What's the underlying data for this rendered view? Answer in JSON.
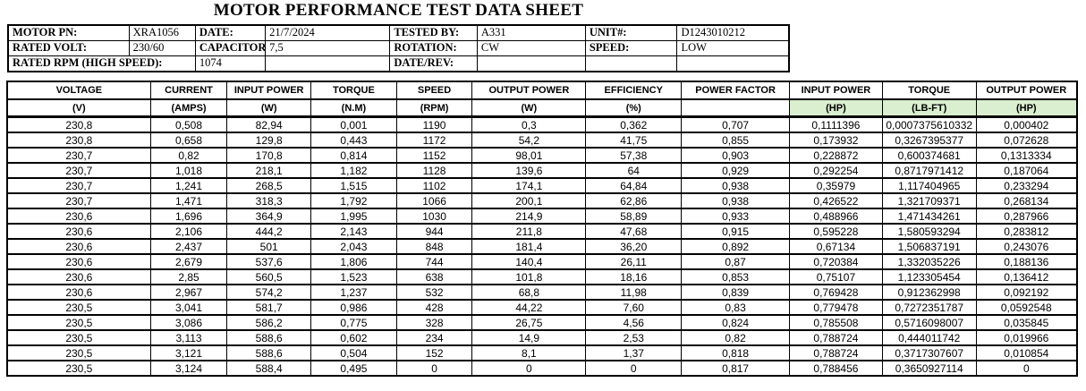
{
  "title": "MOTOR PERFORMANCE TEST DATA SHEET",
  "colors": {
    "unit_highlight": "#d9efcf",
    "border": "#000000"
  },
  "info_table": {
    "rows": [
      [
        {
          "text": "MOTOR PN:",
          "bold": true
        },
        {
          "text": "XRA1056"
        },
        {
          "text": "DATE:",
          "bold": true
        },
        {
          "text": "21/7/2024"
        },
        {
          "text": "TESTED BY:",
          "bold": true
        },
        {
          "text": "A331"
        },
        {
          "text": "UNIT#:",
          "bold": true
        },
        {
          "text": "D1243010212"
        }
      ],
      [
        {
          "text": "RATED VOLT:",
          "bold": true
        },
        {
          "text": "230/60"
        },
        {
          "text": "CAPACITOR:",
          "bold": true
        },
        {
          "text": "7,5"
        },
        {
          "text": "ROTATION:",
          "bold": true
        },
        {
          "text": "CW"
        },
        {
          "text": "SPEED:",
          "bold": true
        },
        {
          "text": "LOW"
        }
      ],
      [
        {
          "text": "RATED RPM (HIGH SPEED):",
          "bold": true,
          "span": 2
        },
        {
          "text": "1074"
        },
        {
          "text": ""
        },
        {
          "text": "DATE/REV:",
          "bold": true
        },
        {
          "text": ""
        },
        {
          "text": ""
        },
        {
          "text": ""
        }
      ]
    ]
  },
  "data_table": {
    "columns": [
      {
        "name": "VOLTAGE",
        "unit": "(V)",
        "highlight": false
      },
      {
        "name": "CURRENT",
        "unit": "(AMPS)",
        "highlight": false
      },
      {
        "name": "INPUT POWER",
        "unit": "(W)",
        "highlight": false
      },
      {
        "name": "TORQUE",
        "unit": "(N.M)",
        "highlight": false
      },
      {
        "name": "SPEED",
        "unit": "(RPM)",
        "highlight": false
      },
      {
        "name": "OUTPUT POWER",
        "unit": "(W)",
        "highlight": false
      },
      {
        "name": "EFFICIENCY",
        "unit": "(%)",
        "highlight": false
      },
      {
        "name": "POWER FACTOR",
        "unit": "",
        "highlight": false
      },
      {
        "name": "INPUT POWER",
        "unit": "(HP)",
        "highlight": true
      },
      {
        "name": "TORQUE",
        "unit": "(LB-FT)",
        "highlight": true
      },
      {
        "name": "OUTPUT POWER",
        "unit": "(HP)",
        "highlight": true
      }
    ],
    "rows": [
      [
        "230,8",
        "0,508",
        "82,94",
        "0,001",
        "1190",
        "0,3",
        "0,362",
        "0,707",
        "0,1111396",
        "0,0007375610332",
        "0,000402"
      ],
      [
        "230,8",
        "0,658",
        "129,8",
        "0,443",
        "1172",
        "54,2",
        "41,75",
        "0,855",
        "0,173932",
        "0,3267395377",
        "0,072628"
      ],
      [
        "230,7",
        "0,82",
        "170,8",
        "0,814",
        "1152",
        "98,01",
        "57,38",
        "0,903",
        "0,228872",
        "0,600374681",
        "0,1313334"
      ],
      [
        "230,7",
        "1,018",
        "218,1",
        "1,182",
        "1128",
        "139,6",
        "64",
        "0,929",
        "0,292254",
        "0,8717971412",
        "0,187064"
      ],
      [
        "230,7",
        "1,241",
        "268,5",
        "1,515",
        "1102",
        "174,1",
        "64,84",
        "0,938",
        "0,35979",
        "1,117404965",
        "0,233294"
      ],
      [
        "230,7",
        "1,471",
        "318,3",
        "1,792",
        "1066",
        "200,1",
        "62,86",
        "0,938",
        "0,426522",
        "1,321709371",
        "0,268134"
      ],
      [
        "230,6",
        "1,696",
        "364,9",
        "1,995",
        "1030",
        "214,9",
        "58,89",
        "0,933",
        "0,488966",
        "1,471434261",
        "0,287966"
      ],
      [
        "230,6",
        "2,106",
        "444,2",
        "2,143",
        "944",
        "211,8",
        "47,68",
        "0,915",
        "0,595228",
        "1,580593294",
        "0,283812"
      ],
      [
        "230,6",
        "2,437",
        "501",
        "2,043",
        "848",
        "181,4",
        "36,20",
        "0,892",
        "0,67134",
        "1,506837191",
        "0,243076"
      ],
      [
        "230,6",
        "2,679",
        "537,6",
        "1,806",
        "744",
        "140,4",
        "26,11",
        "0,87",
        "0,720384",
        "1,332035226",
        "0,188136"
      ],
      [
        "230,6",
        "2,85",
        "560,5",
        "1,523",
        "638",
        "101,8",
        "18,16",
        "0,853",
        "0,75107",
        "1,123305454",
        "0,136412"
      ],
      [
        "230,6",
        "2,967",
        "574,2",
        "1,237",
        "532",
        "68,8",
        "11,98",
        "0,839",
        "0,769428",
        "0,912362998",
        "0,092192"
      ],
      [
        "230,5",
        "3,041",
        "581,7",
        "0,986",
        "428",
        "44,22",
        "7,60",
        "0,83",
        "0,779478",
        "0,7272351787",
        "0,0592548"
      ],
      [
        "230,5",
        "3,086",
        "586,2",
        "0,775",
        "328",
        "26,75",
        "4,56",
        "0,824",
        "0,785508",
        "0,5716098007",
        "0,035845"
      ],
      [
        "230,5",
        "3,113",
        "588,6",
        "0,602",
        "234",
        "14,9",
        "2,53",
        "0,82",
        "0,788724",
        "0,444011742",
        "0,019966"
      ],
      [
        "230,5",
        "3,121",
        "588,6",
        "0,504",
        "152",
        "8,1",
        "1,37",
        "0,818",
        "0,788724",
        "0,3717307607",
        "0,010854"
      ],
      [
        "230,5",
        "3,124",
        "588,4",
        "0,495",
        "0",
        "0",
        "0",
        "0,817",
        "0,788456",
        "0,3650927114",
        "0"
      ]
    ]
  }
}
